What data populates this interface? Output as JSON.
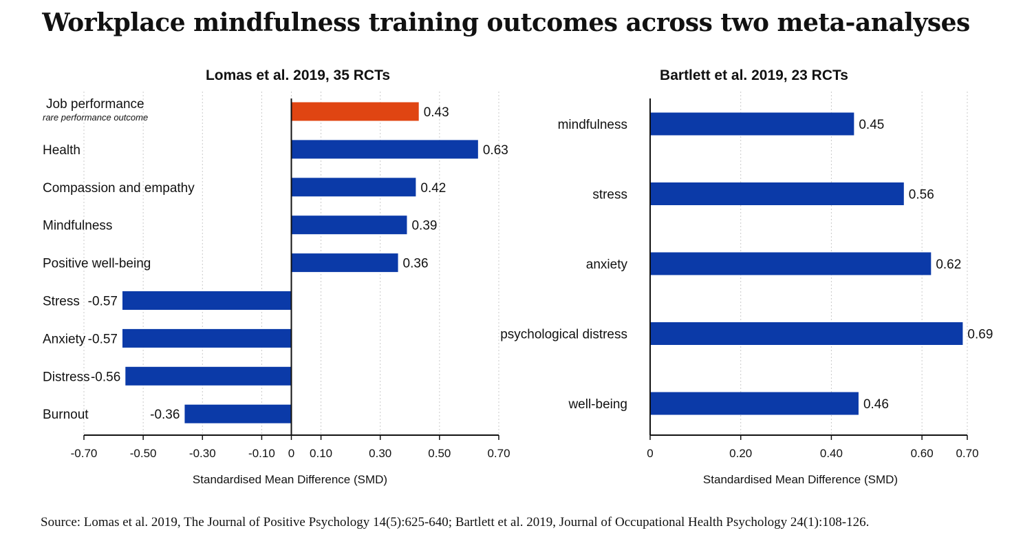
{
  "title": "Workplace mindfulness training outcomes across two meta-analyses",
  "source": "Source: Lomas et al. 2019, The Journal of Positive Psychology 14(5):625-640; Bartlett et al. 2019, Journal of Occupational Health Psychology 24(1):108-126.",
  "colors": {
    "primary": "#0b3aa8",
    "highlight": "#e04512"
  },
  "chart_data": [
    {
      "type": "bar",
      "orientation": "horizontal",
      "title": "Lomas et al. 2019, 35 RCTs",
      "xlabel": "Standardised Mean Difference (SMD)",
      "xlim": [
        -0.7,
        0.7
      ],
      "ticks": [
        -0.7,
        -0.5,
        -0.3,
        -0.1,
        0,
        0.1,
        0.3,
        0.5,
        0.7
      ],
      "tick_labels": [
        "-0.70",
        "-0.50",
        "-0.30",
        "-0.10",
        "0",
        "0.10",
        "0.30",
        "0.50",
        "0.70"
      ],
      "grid": true,
      "categories": [
        "Job performance",
        "Health",
        "Compassion and empathy",
        "Mindfulness",
        "Positive well-being",
        "Stress",
        "Anxiety",
        "Distress",
        "Burnout"
      ],
      "category_notes": [
        "rare performance outcome",
        "",
        "",
        "",
        "",
        "",
        "",
        "",
        ""
      ],
      "values": [
        0.43,
        0.63,
        0.42,
        0.39,
        0.36,
        -0.57,
        -0.57,
        -0.56,
        -0.36
      ],
      "value_labels": [
        "0.43",
        "0.63",
        "0.42",
        "0.39",
        "0.36",
        "-0.57",
        "-0.57",
        "-0.56",
        "-0.36"
      ],
      "highlight_index": 0
    },
    {
      "type": "bar",
      "orientation": "horizontal",
      "title": "Bartlett et al. 2019, 23 RCTs",
      "xlabel": "Standardised Mean Difference (SMD)",
      "xlim": [
        0,
        0.7
      ],
      "ticks": [
        0,
        0.2,
        0.4,
        0.6,
        0.7
      ],
      "tick_labels": [
        "0",
        "0.20",
        "0.40",
        "0.60",
        "0.70"
      ],
      "grid": true,
      "categories": [
        "mindfulness",
        "stress",
        "anxiety",
        "psychological distress",
        "well-being"
      ],
      "values": [
        0.45,
        0.56,
        0.62,
        0.69,
        0.46
      ],
      "value_labels": [
        "0.45",
        "0.56",
        "0.62",
        "0.69",
        "0.46"
      ]
    }
  ]
}
